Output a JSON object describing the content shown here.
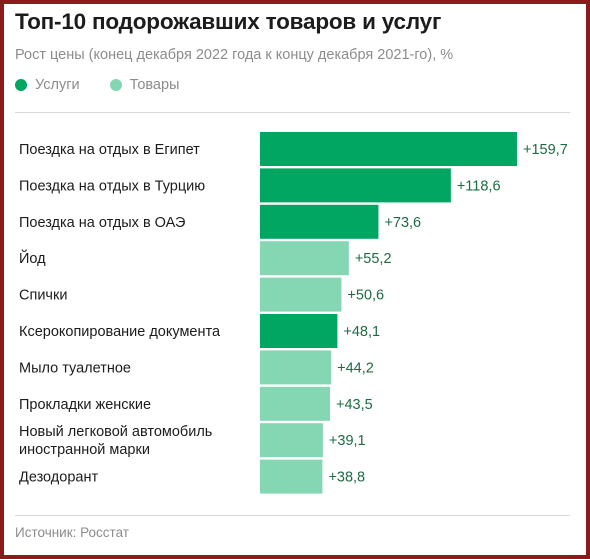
{
  "title": "Топ-10 подорожавших товаров и услуг",
  "subtitle": "Рост цены (конец декабря 2022 года к концу декабря 2021-го), %",
  "source": "Источник: Росстат",
  "legend": [
    {
      "label": "Услуги",
      "color": "#00a661"
    },
    {
      "label": "Товары",
      "color": "#85d7b4"
    }
  ],
  "colors": {
    "services": "#00a661",
    "goods": "#85d7b4",
    "value_label": "#1d6b45",
    "frame": "#8b1a1a"
  },
  "chart_data": {
    "type": "bar",
    "orientation": "horizontal",
    "categories": [
      [
        "Поездка на отдых в Египет"
      ],
      [
        "Поездка на отдых в Турцию"
      ],
      [
        "Поездка на отдых в ОАЭ"
      ],
      [
        "Йод"
      ],
      [
        "Спички"
      ],
      [
        "Ксерокопирование документа"
      ],
      [
        "Мыло туалетное"
      ],
      [
        "Прокладки женские"
      ],
      [
        "Новый легковой автомобиль",
        "иностранной марки"
      ],
      [
        "Дезодорант"
      ]
    ],
    "values": [
      159.7,
      118.6,
      73.6,
      55.2,
      50.6,
      48.1,
      44.2,
      43.5,
      39.1,
      38.8
    ],
    "value_labels": [
      "+159,7",
      "+118,6",
      "+73,6",
      "+55,2",
      "+50,6",
      "+48,1",
      "+44,2",
      "+43,5",
      "+39,1",
      "+38,8"
    ],
    "groups": [
      "Услуги",
      "Услуги",
      "Услуги",
      "Товары",
      "Товары",
      "Услуги",
      "Товары",
      "Товары",
      "Товары",
      "Товары"
    ],
    "xlim": [
      0,
      159.7
    ],
    "grid": false,
    "legend_position": "top-left"
  }
}
